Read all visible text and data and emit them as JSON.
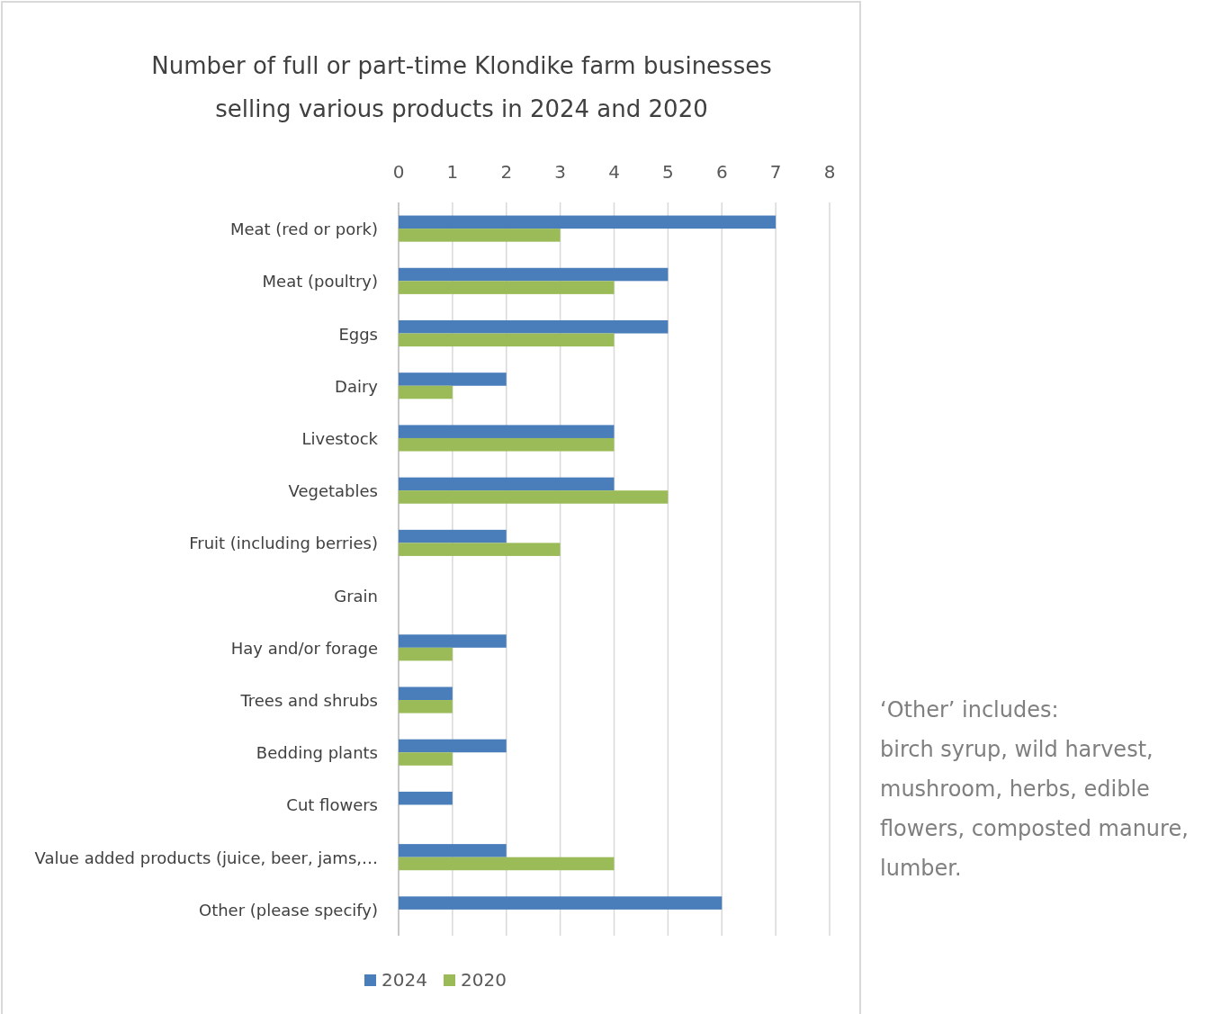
{
  "chart_data": {
    "type": "bar",
    "orientation": "horizontal",
    "title": "Number of full or part-time Klondike farm businesses selling various products in 2024 and 2020",
    "categories": [
      "Meat (red or pork)",
      "Meat (poultry)",
      "Eggs",
      "Dairy",
      "Livestock",
      "Vegetables",
      "Fruit (including berries)",
      "Grain",
      "Hay and/or forage",
      "Trees and shrubs",
      "Bedding plants",
      "Cut flowers",
      "Value added products (juice, beer, jams,…",
      "Other (please specify)"
    ],
    "series": [
      {
        "name": "2024",
        "color": "#4a7ebb",
        "values": [
          7,
          5,
          5,
          2,
          4,
          4,
          2,
          0,
          2,
          1,
          2,
          1,
          2,
          6
        ]
      },
      {
        "name": "2020",
        "color": "#9bbb59",
        "values": [
          3,
          4,
          4,
          1,
          4,
          5,
          3,
          0,
          1,
          1,
          1,
          0,
          4,
          0
        ]
      }
    ],
    "xlim": [
      0,
      8
    ],
    "xticks": [
      0,
      1,
      2,
      3,
      4,
      5,
      6,
      7,
      8
    ],
    "grid": "x",
    "legend": "bottom",
    "annotations": [
      "‘Other’ includes:",
      "birch syrup, wild harvest, mushroom, herbs, edible flowers, composted manure, lumber."
    ]
  }
}
